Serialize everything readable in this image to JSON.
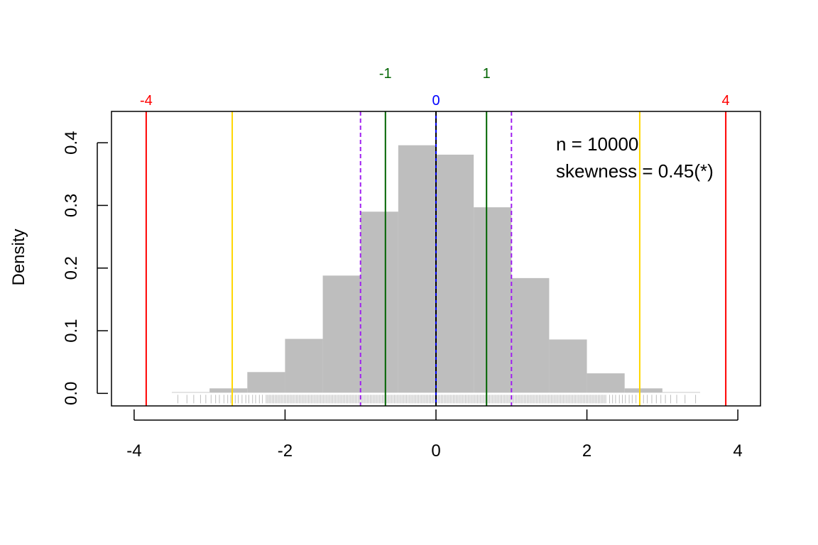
{
  "chart_data": {
    "type": "bar",
    "subtype": "histogram",
    "ylabel": "Density",
    "xlabel": "",
    "xlim": [
      -4.3,
      4.3
    ],
    "ylim": [
      -0.02,
      0.45
    ],
    "x_ticks": [
      -4,
      -2,
      0,
      2,
      4
    ],
    "x_tick_labels": [
      "-4",
      "-2",
      "0",
      "2",
      "4"
    ],
    "y_ticks": [
      0.0,
      0.1,
      0.2,
      0.3,
      0.4
    ],
    "y_tick_labels": [
      "0.0",
      "0.1",
      "0.2",
      "0.3",
      "0.4"
    ],
    "bins": [
      {
        "from": -3.5,
        "to": -3.0,
        "density": 0.002
      },
      {
        "from": -3.0,
        "to": -2.5,
        "density": 0.008
      },
      {
        "from": -2.5,
        "to": -2.0,
        "density": 0.034
      },
      {
        "from": -2.0,
        "to": -1.5,
        "density": 0.087
      },
      {
        "from": -1.5,
        "to": -1.0,
        "density": 0.188
      },
      {
        "from": -1.0,
        "to": -0.5,
        "density": 0.29
      },
      {
        "from": -0.5,
        "to": 0.0,
        "density": 0.396
      },
      {
        "from": 0.0,
        "to": 0.5,
        "density": 0.381
      },
      {
        "from": 0.5,
        "to": 1.0,
        "density": 0.297
      },
      {
        "from": 1.0,
        "to": 1.5,
        "density": 0.184
      },
      {
        "from": 1.5,
        "to": 2.0,
        "density": 0.086
      },
      {
        "from": 2.0,
        "to": 2.5,
        "density": 0.032
      },
      {
        "from": 2.5,
        "to": 3.0,
        "density": 0.008
      },
      {
        "from": 3.0,
        "to": 3.5,
        "density": 0.002
      }
    ],
    "bar_color": "#bebebe",
    "vertical_lines": [
      {
        "x": -3.84,
        "color": "#ff0000",
        "style": "solid",
        "top_label": "-4"
      },
      {
        "x": -2.7,
        "color": "#ffd700",
        "style": "solid",
        "top_label": ""
      },
      {
        "x": -1.0,
        "color": "#a020f0",
        "style": "dashed",
        "top_label": ""
      },
      {
        "x": -0.67,
        "color": "#006400",
        "style": "solid",
        "top_label": "-1"
      },
      {
        "x": 0.0,
        "color": "#0000ff",
        "style": "solid",
        "top_label": "0"
      },
      {
        "x": 0.0,
        "color": "#000000",
        "style": "dashed",
        "top_label": ""
      },
      {
        "x": 0.67,
        "color": "#006400",
        "style": "solid",
        "top_label": "1"
      },
      {
        "x": 1.0,
        "color": "#a020f0",
        "style": "dashed",
        "top_label": ""
      },
      {
        "x": 2.7,
        "color": "#ffd700",
        "style": "solid",
        "top_label": ""
      },
      {
        "x": 3.84,
        "color": "#ff0000",
        "style": "solid",
        "top_label": "4"
      }
    ],
    "rug": {
      "color": "#bebebe",
      "range": [
        -3.5,
        3.45
      ],
      "dense_range": [
        -2.25,
        2.25
      ],
      "sparse_left": [
        -3.42,
        -3.3,
        -3.21,
        -3.12,
        -3.05,
        -2.98,
        -2.92,
        -2.87,
        -2.81,
        -2.76,
        -2.72,
        -2.66,
        -2.62,
        -2.57,
        -2.52,
        -2.48,
        -2.43,
        -2.39,
        -2.34,
        -2.3
      ],
      "sparse_right": [
        2.3,
        2.34,
        2.38,
        2.43,
        2.47,
        2.51,
        2.56,
        2.6,
        2.65,
        2.7,
        2.75,
        2.8,
        2.86,
        2.92,
        2.98,
        3.04,
        3.11,
        3.19,
        3.3,
        3.44
      ]
    },
    "annotations": [
      "n = 10000",
      "skewness = 0.45(*)"
    ],
    "grid": false,
    "legend": "none"
  }
}
